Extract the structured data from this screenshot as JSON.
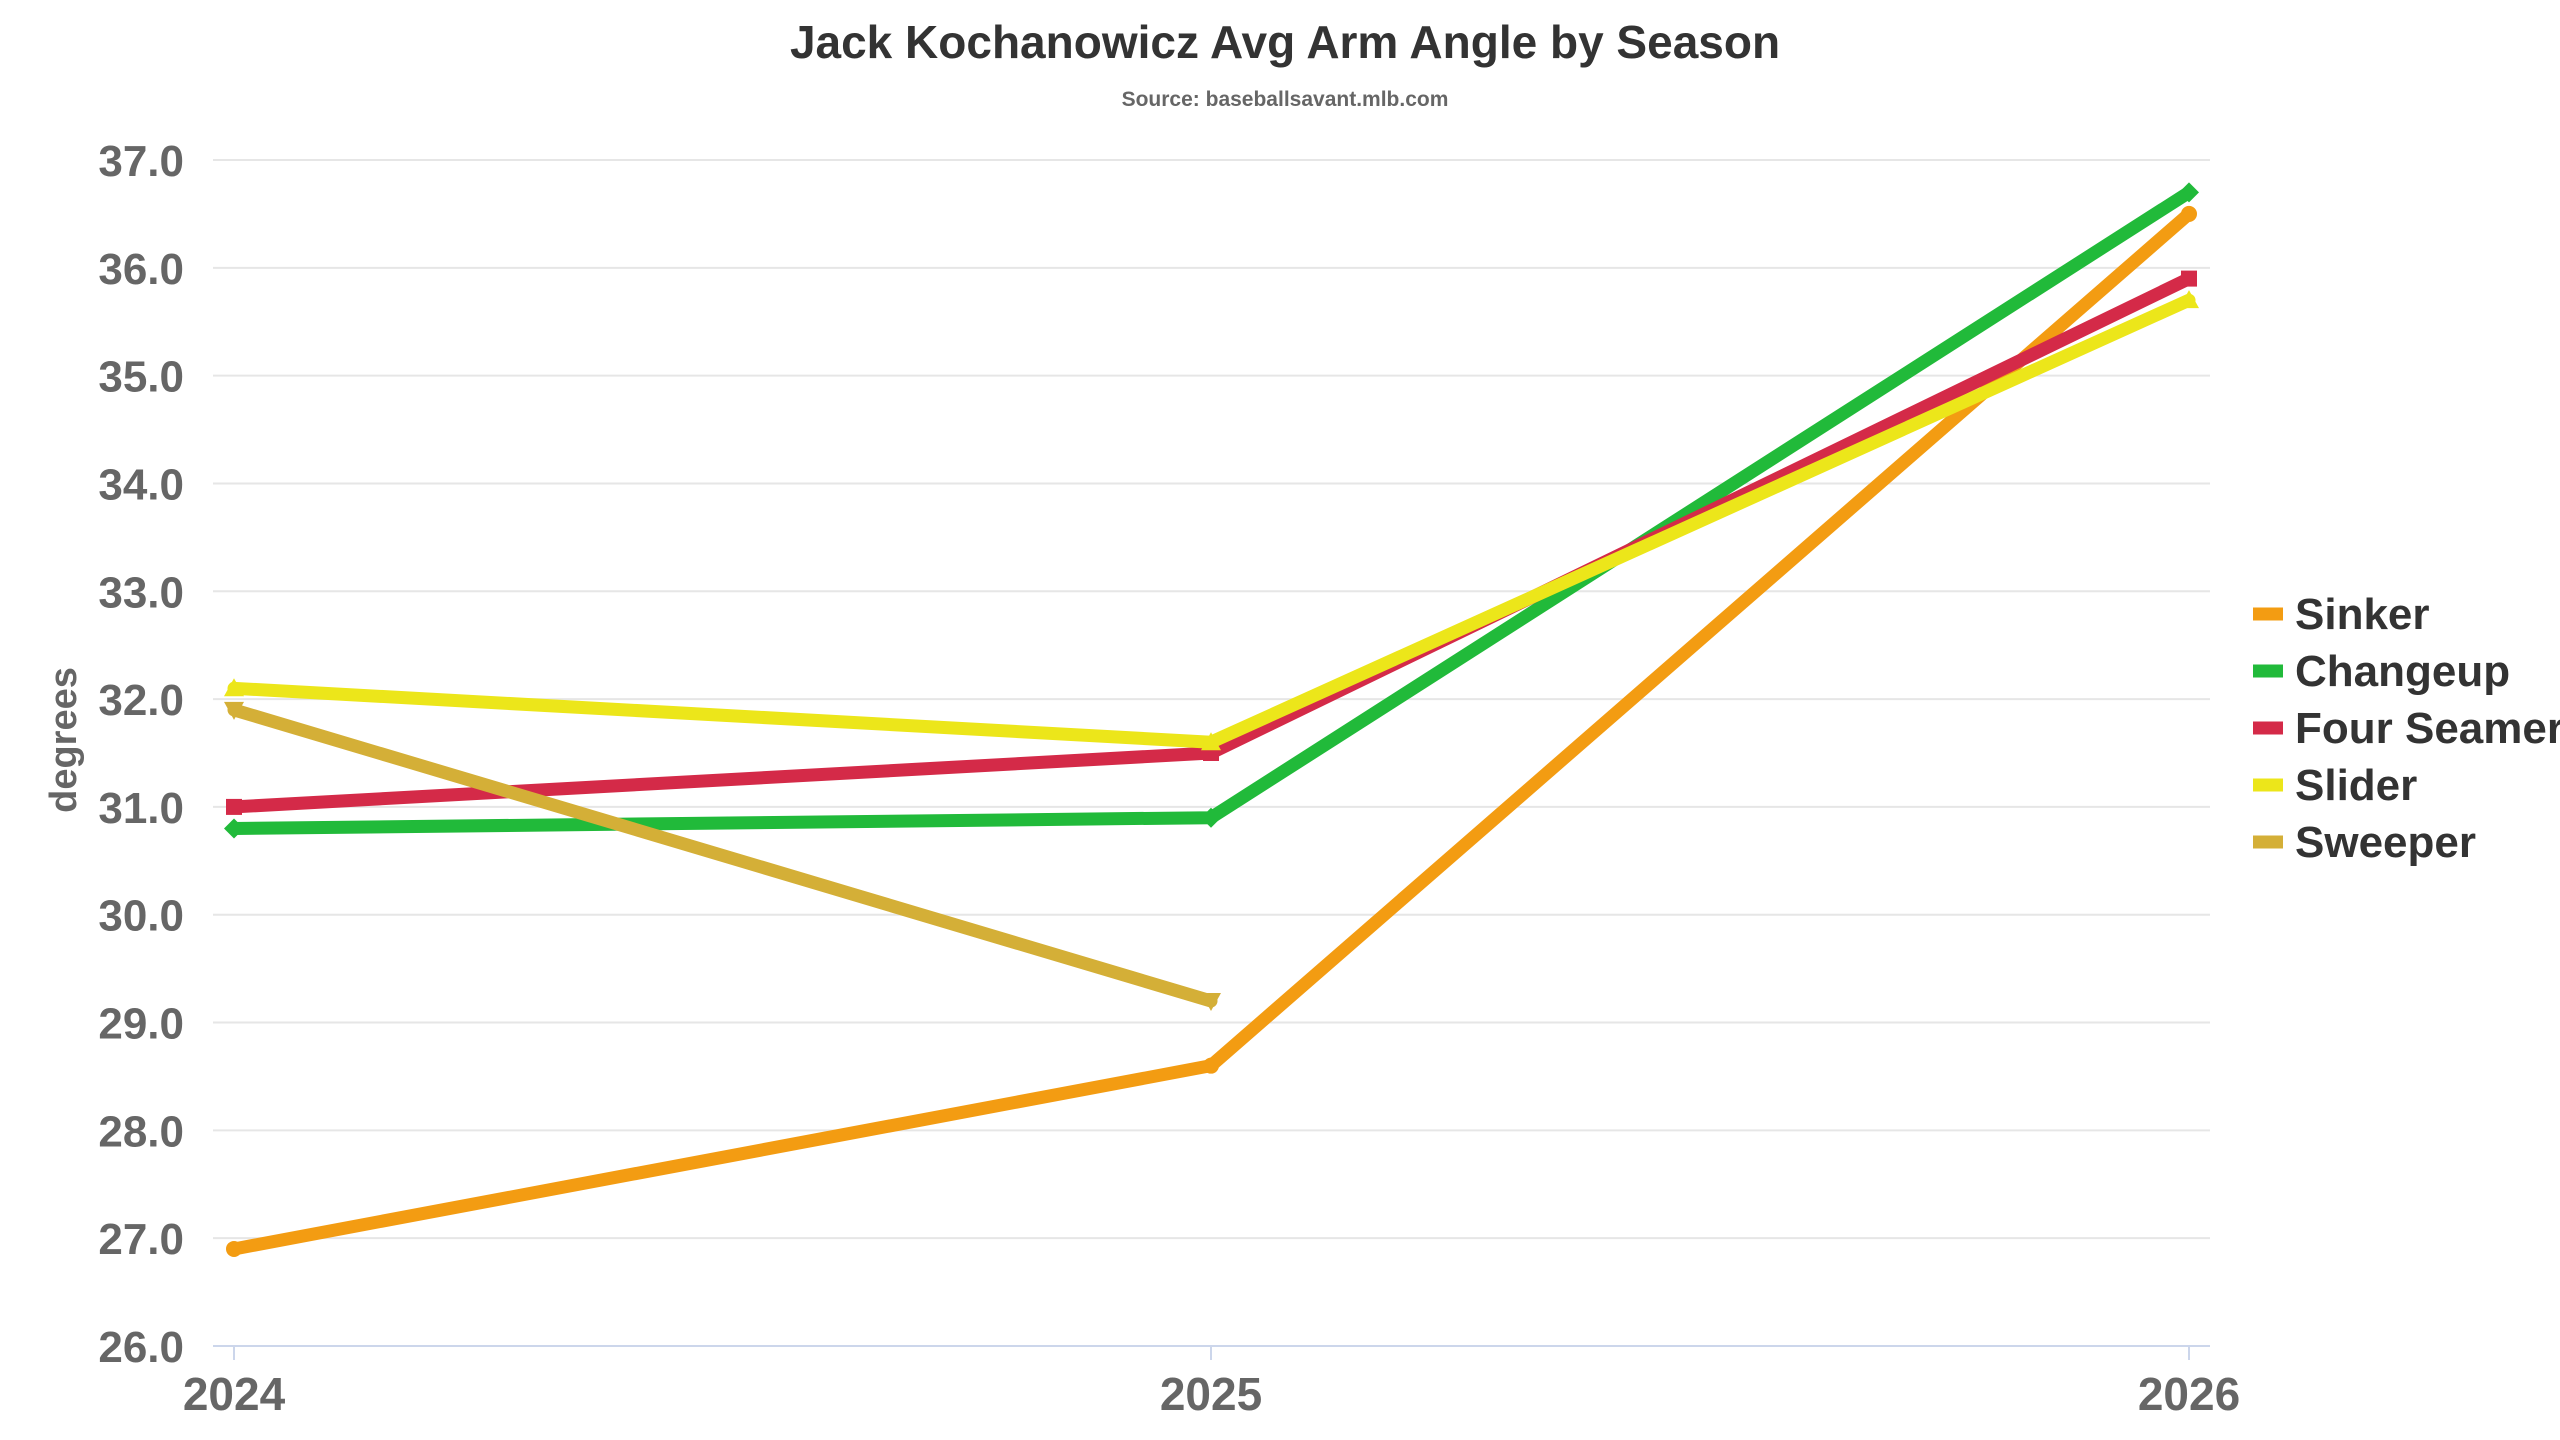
{
  "chart_data": {
    "type": "line",
    "title": "Jack Kochanowicz Avg Arm Angle by Season",
    "subtitle": "Source: baseballsavant.mlb.com",
    "xlabel": "",
    "ylabel": "degrees",
    "categories": [
      "2024",
      "2025",
      "2026"
    ],
    "ylim": [
      26.0,
      37.0
    ],
    "yticks": [
      "26.0",
      "27.0",
      "28.0",
      "29.0",
      "30.0",
      "31.0",
      "32.0",
      "33.0",
      "34.0",
      "35.0",
      "36.0",
      "37.0"
    ],
    "grid": true,
    "legend_position": "right",
    "series": [
      {
        "name": "Sinker",
        "color": "#f39c12",
        "marker": "circle",
        "values": [
          26.9,
          28.6,
          36.5
        ]
      },
      {
        "name": "Changeup",
        "color": "#21ba3a",
        "marker": "diamond",
        "values": [
          30.8,
          30.9,
          36.7
        ]
      },
      {
        "name": "Four Seamer",
        "color": "#d42a48",
        "marker": "square",
        "values": [
          31.0,
          31.5,
          35.9
        ]
      },
      {
        "name": "Slider",
        "color": "#ece61a",
        "marker": "triangle",
        "values": [
          32.1,
          31.6,
          35.7
        ]
      },
      {
        "name": "Sweeper",
        "color": "#d4af37",
        "marker": "triangle-down",
        "values": [
          31.9,
          29.2,
          null
        ]
      }
    ]
  }
}
